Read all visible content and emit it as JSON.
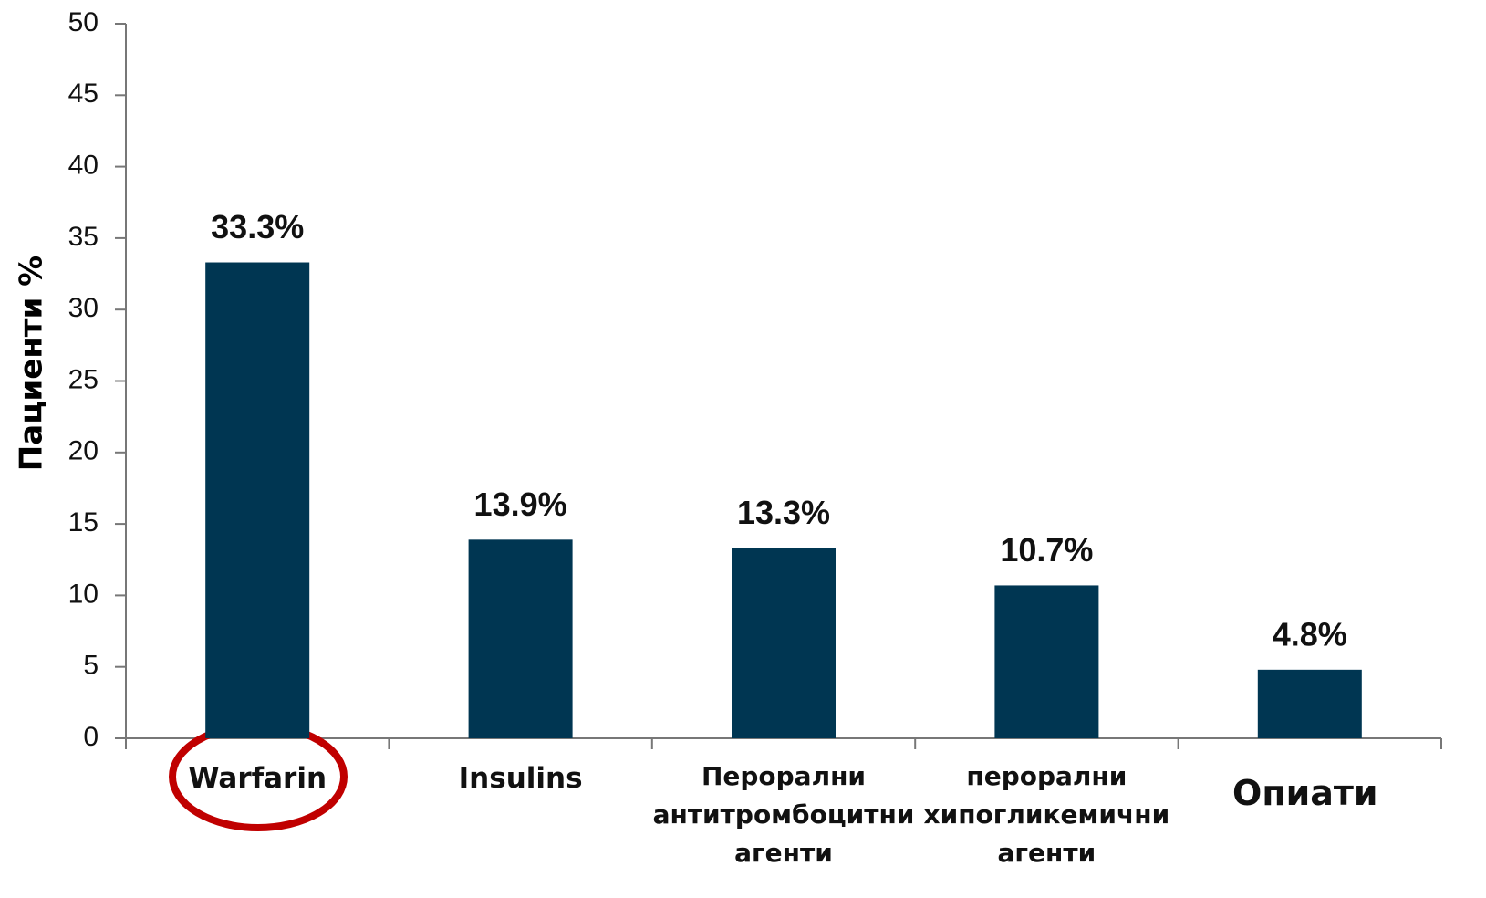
{
  "chart_data": {
    "type": "bar",
    "ylabel": "Пациенти %",
    "categories": [
      "Warfarin",
      "Insulins",
      "Перорални\nантитромбоцитни\nагенти",
      "перорални\nхипогликемични\nагенти",
      "Опиати"
    ],
    "values": [
      33.3,
      13.9,
      13.3,
      10.7,
      4.8
    ],
    "value_labels": [
      "33.3%",
      "13.9%",
      "13.3%",
      "10.7%",
      "4.8%"
    ],
    "color": "#003652",
    "ylim": [
      0,
      50
    ],
    "yticks": [
      0,
      5,
      10,
      15,
      20,
      25,
      30,
      35,
      40,
      45,
      50
    ],
    "grid": false
  }
}
